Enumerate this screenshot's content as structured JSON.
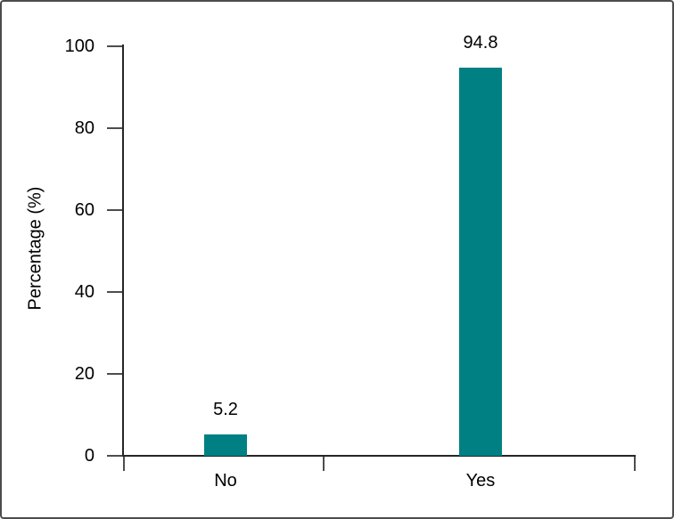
{
  "figure": {
    "background": "#ffffff",
    "border_color": "#4c4c4c"
  },
  "chart_data": {
    "type": "bar",
    "categories": [
      "No",
      "Yes"
    ],
    "values": [
      5.2,
      94.8
    ],
    "value_labels": [
      "5.2",
      "94.8"
    ],
    "ylabel": "Percentage (%)",
    "ylim": [
      0,
      100
    ],
    "yticks": [
      0,
      20,
      40,
      60,
      80,
      100
    ],
    "bar_color": "#008083",
    "axis_color": "#262626",
    "text_color": "#000000",
    "grid": "off",
    "legend": "none",
    "orientation": "vertical"
  }
}
